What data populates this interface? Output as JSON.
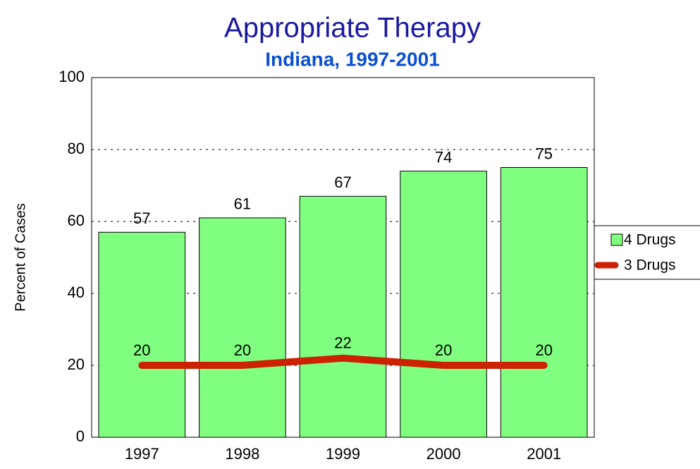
{
  "chart_data": {
    "type": "bar",
    "title": "Appropriate Therapy",
    "subtitle": "Indiana, 1997-2001",
    "y_label": "Percent of Cases",
    "categories": [
      "1997",
      "1998",
      "1999",
      "2000",
      "2001"
    ],
    "series": [
      {
        "name": "4 Drugs",
        "type": "bar",
        "color": "#80ff80",
        "values": [
          57,
          61,
          67,
          74,
          75
        ]
      },
      {
        "name": "3 Drugs",
        "type": "line",
        "color": "#cc2200",
        "values": [
          20,
          20,
          22,
          20,
          20
        ]
      }
    ],
    "ylim": [
      0,
      100
    ],
    "yticks": [
      0,
      20,
      40,
      60,
      80,
      100
    ],
    "grid": true,
    "legend": "right"
  }
}
